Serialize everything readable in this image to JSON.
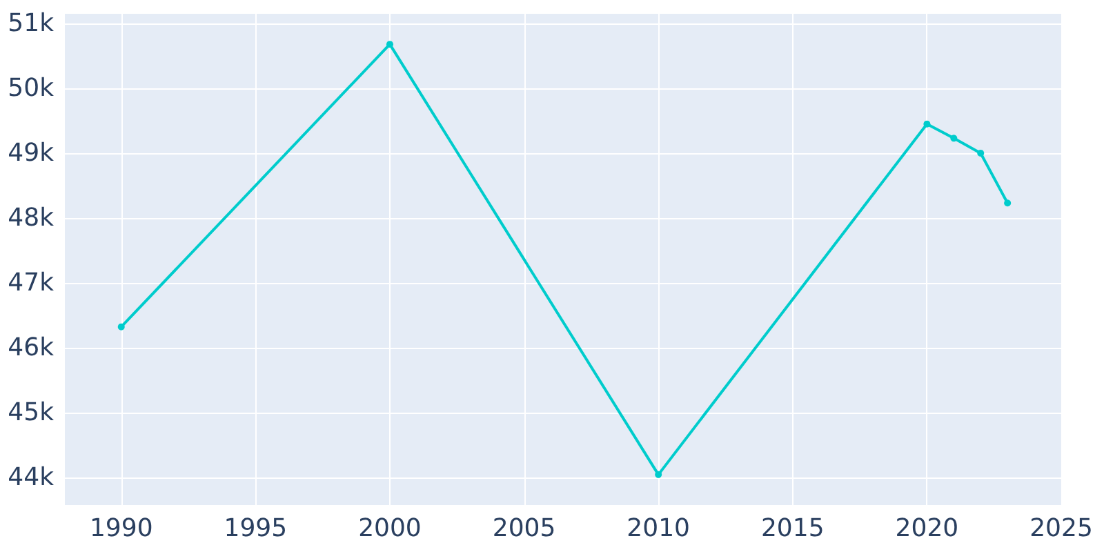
{
  "chart_data": {
    "type": "line",
    "x": [
      1990,
      2000,
      2010,
      2020,
      2021,
      2022,
      2023
    ],
    "series": [
      {
        "color": "#00cccc",
        "values": [
          46320,
          50680,
          44040,
          49450,
          49230,
          49000,
          48230
        ]
      }
    ],
    "xlim": [
      1987.9,
      2025
    ],
    "xticks": [
      1990,
      1995,
      2000,
      2005,
      2010,
      2015,
      2020,
      2025
    ],
    "ylim": [
      43570,
      51150
    ],
    "yticks": [
      {
        "value": 44000,
        "label": "44k"
      },
      {
        "value": 45000,
        "label": "45k"
      },
      {
        "value": 46000,
        "label": "46k"
      },
      {
        "value": 47000,
        "label": "47k"
      },
      {
        "value": 48000,
        "label": "48k"
      },
      {
        "value": 49000,
        "label": "49k"
      },
      {
        "value": 50000,
        "label": "50k"
      },
      {
        "value": 51000,
        "label": "51k"
      }
    ],
    "grid": true,
    "marker": "circle",
    "line_style": "solid"
  }
}
